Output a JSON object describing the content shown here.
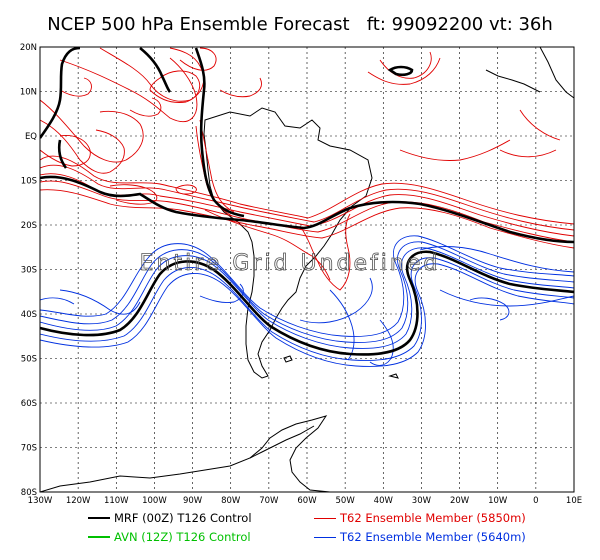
{
  "map": {
    "title": "NCEP 500 hPa Ensemble Forecast   ft: 99092200 vt: 36h",
    "overlay_text": "Entire Grid Undefined",
    "lat_labels": [
      "20N",
      "10N",
      "EQ",
      "10S",
      "20S",
      "30S",
      "40S",
      "50S",
      "60S",
      "70S",
      "80S"
    ],
    "lon_labels": [
      "130W",
      "120W",
      "110W",
      "100W",
      "90W",
      "80W",
      "70W",
      "60W",
      "50W",
      "40W",
      "30W",
      "20W",
      "10W",
      "0",
      "10E"
    ],
    "colors": {
      "mrf": "#000000",
      "avn": "#00c000",
      "ens_5850": "#e00000",
      "ens_5640": "#0030e0",
      "coast": "#000000",
      "grid": "#000000"
    }
  },
  "legend": {
    "mrf": "MRF (00Z) T126 Control",
    "avn": "AVN (12Z) T126 Control",
    "ens_5850": "T62 Ensemble Member (5850m)",
    "ens_5640": "T62 Ensemble Member (5640m)"
  }
}
